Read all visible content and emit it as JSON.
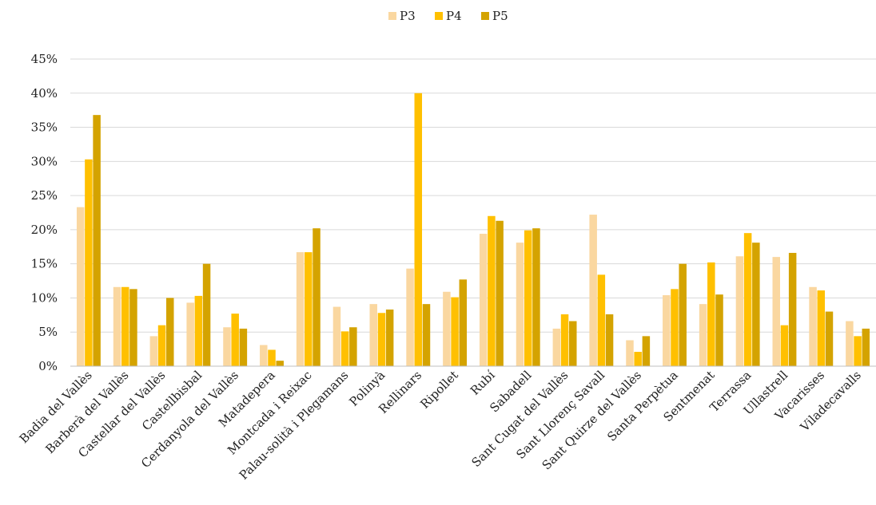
{
  "chart_data": {
    "type": "bar",
    "title": "",
    "xlabel": "",
    "ylabel": "",
    "ylim": [
      0,
      45
    ],
    "yticks": [
      "0%",
      "5%",
      "10%",
      "15%",
      "20%",
      "25%",
      "30%",
      "35%",
      "40%",
      "45%"
    ],
    "grid": true,
    "legend_position": "top-center",
    "categories": [
      "Badia del Vallès",
      "Barberà del Vallès",
      "Castellar del Vallès",
      "Castellbisbal",
      "Cerdanyola del Vallès",
      "Matadepera",
      "Montcada i Reixac",
      "Palau-solità i Plegamans",
      "Polinyà",
      "Rellinars",
      "Ripollet",
      "Rubí",
      "Sabadell",
      "Sant Cugat del Vallès",
      "Sant Llorenç Savall",
      "Sant Quirze del Vallès",
      "Santa Perpètua",
      "Sentmenat",
      "Terrassa",
      "Ullastrell",
      "Vacarisses",
      "Viladecavalls"
    ],
    "series": [
      {
        "name": "P3",
        "color": "#FAD7A0",
        "values": [
          23.3,
          11.6,
          4.4,
          9.3,
          5.7,
          3.1,
          16.7,
          8.7,
          9.1,
          14.3,
          10.9,
          19.4,
          18.1,
          5.5,
          22.2,
          3.8,
          10.4,
          9.1,
          16.1,
          16.0,
          11.6,
          6.6
        ]
      },
      {
        "name": "P4",
        "color": "#FFC000",
        "values": [
          30.3,
          11.6,
          6.0,
          10.3,
          7.7,
          2.4,
          16.7,
          5.1,
          7.8,
          40.0,
          10.1,
          22.0,
          19.9,
          7.6,
          13.4,
          2.1,
          11.3,
          15.2,
          19.5,
          6.0,
          11.1,
          4.4
        ]
      },
      {
        "name": "P5",
        "color": "#D4A300",
        "values": [
          36.8,
          11.3,
          10.0,
          15.0,
          5.5,
          0.8,
          20.2,
          5.7,
          8.3,
          9.1,
          12.7,
          21.3,
          20.2,
          6.6,
          7.6,
          4.4,
          15.0,
          10.5,
          18.1,
          16.6,
          8.0,
          5.5
        ]
      }
    ]
  }
}
